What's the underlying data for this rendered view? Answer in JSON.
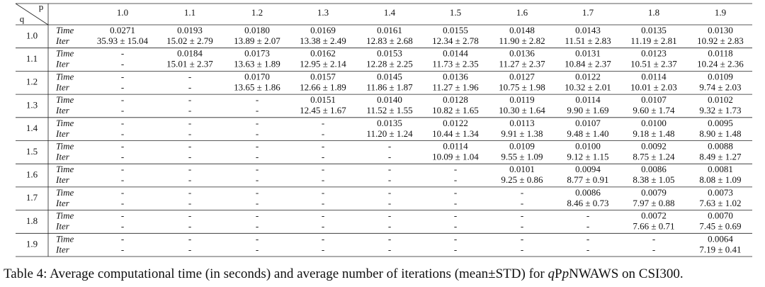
{
  "table": {
    "corner_p": "p",
    "corner_q": "q",
    "columns": [
      "1.0",
      "1.1",
      "1.2",
      "1.3",
      "1.4",
      "1.5",
      "1.6",
      "1.7",
      "1.8",
      "1.9"
    ],
    "rows": [
      {
        "q": "1.0",
        "time_label": "Time",
        "iter_label": "Iter",
        "time": [
          "0.0271",
          "0.0193",
          "0.0180",
          "0.0169",
          "0.0161",
          "0.0155",
          "0.0148",
          "0.0143",
          "0.0135",
          "0.0130"
        ],
        "iter": [
          "35.93 ± 15.04",
          "15.02 ± 2.79",
          "13.89 ± 2.07",
          "13.38 ± 2.49",
          "12.83 ± 2.68",
          "12.34 ± 2.78",
          "11.90 ± 2.82",
          "11.51 ± 2.83",
          "11.19 ± 2.81",
          "10.92 ± 2.83"
        ]
      },
      {
        "q": "1.1",
        "time_label": "Time",
        "iter_label": "Iter",
        "time": [
          "-",
          "0.0184",
          "0.0173",
          "0.0162",
          "0.0153",
          "0.0144",
          "0.0136",
          "0.0131",
          "0.0123",
          "0.0118"
        ],
        "iter": [
          "-",
          "15.01 ± 2.37",
          "13.63 ± 1.89",
          "12.95 ± 2.14",
          "12.28 ± 2.25",
          "11.73 ± 2.35",
          "11.27 ± 2.37",
          "10.84 ± 2.37",
          "10.51 ± 2.37",
          "10.24 ± 2.36"
        ]
      },
      {
        "q": "1.2",
        "time_label": "Time",
        "iter_label": "Iter",
        "time": [
          "-",
          "-",
          "0.0170",
          "0.0157",
          "0.0145",
          "0.0136",
          "0.0127",
          "0.0122",
          "0.0114",
          "0.0109"
        ],
        "iter": [
          "-",
          "-",
          "13.65 ± 1.86",
          "12.66 ± 1.89",
          "11.86 ± 1.87",
          "11.27 ± 1.96",
          "10.75 ± 1.98",
          "10.32 ± 2.01",
          "10.01 ± 2.03",
          "9.74 ± 2.03"
        ]
      },
      {
        "q": "1.3",
        "time_label": "Time",
        "iter_label": "Iter",
        "time": [
          "-",
          "-",
          "-",
          "0.0151",
          "0.0140",
          "0.0128",
          "0.0119",
          "0.0114",
          "0.0107",
          "0.0102"
        ],
        "iter": [
          "-",
          "-",
          "-",
          "12.45 ± 1.67",
          "11.52 ± 1.55",
          "10.82 ± 1.65",
          "10.30 ± 1.64",
          "9.90 ± 1.69",
          "9.60 ± 1.74",
          "9.32 ± 1.73"
        ]
      },
      {
        "q": "1.4",
        "time_label": "Time",
        "iter_label": "Iter",
        "time": [
          "-",
          "-",
          "-",
          "-",
          "0.0135",
          "0.0122",
          "0.0113",
          "0.0107",
          "0.0100",
          "0.0095"
        ],
        "iter": [
          "-",
          "-",
          "-",
          "-",
          "11.20 ± 1.24",
          "10.44 ± 1.34",
          "9.91 ± 1.38",
          "9.48 ± 1.40",
          "9.18 ± 1.48",
          "8.90 ± 1.48"
        ]
      },
      {
        "q": "1.5",
        "time_label": "Time",
        "iter_label": "Iter",
        "time": [
          "-",
          "-",
          "-",
          "-",
          "-",
          "0.0114",
          "0.0109",
          "0.0100",
          "0.0092",
          "0.0088"
        ],
        "iter": [
          "-",
          "-",
          "-",
          "-",
          "-",
          "10.09 ± 1.04",
          "9.55 ± 1.09",
          "9.12 ± 1.15",
          "8.75 ± 1.24",
          "8.49 ± 1.27"
        ]
      },
      {
        "q": "1.6",
        "time_label": "Time",
        "iter_label": "Iter",
        "time": [
          "-",
          "-",
          "-",
          "-",
          "-",
          "-",
          "0.0101",
          "0.0094",
          "0.0086",
          "0.0081"
        ],
        "iter": [
          "-",
          "-",
          "-",
          "-",
          "-",
          "-",
          "9.25 ± 0.86",
          "8.77 ± 0.91",
          "8.38 ± 1.05",
          "8.08 ± 1.09"
        ]
      },
      {
        "q": "1.7",
        "time_label": "Time",
        "iter_label": "Iter",
        "time": [
          "-",
          "-",
          "-",
          "-",
          "-",
          "-",
          "-",
          "0.0086",
          "0.0079",
          "0.0073"
        ],
        "iter": [
          "-",
          "-",
          "-",
          "-",
          "-",
          "-",
          "-",
          "8.46 ± 0.73",
          "7.97 ± 0.88",
          "7.63 ± 1.02"
        ]
      },
      {
        "q": "1.8",
        "time_label": "Time",
        "iter_label": "Iter",
        "time": [
          "-",
          "-",
          "-",
          "-",
          "-",
          "-",
          "-",
          "-",
          "0.0072",
          "0.0070"
        ],
        "iter": [
          "-",
          "-",
          "-",
          "-",
          "-",
          "-",
          "-",
          "-",
          "7.66 ± 0.71",
          "7.45 ± 0.69"
        ]
      },
      {
        "q": "1.9",
        "time_label": "Time",
        "iter_label": "Iter",
        "time": [
          "-",
          "-",
          "-",
          "-",
          "-",
          "-",
          "-",
          "-",
          "-",
          "0.0064"
        ],
        "iter": [
          "-",
          "-",
          "-",
          "-",
          "-",
          "-",
          "-",
          "-",
          "-",
          "7.19 ± 0.41"
        ]
      }
    ]
  },
  "caption": [
    "Table 4: Average computational time (in seconds) and average number of iterations (mean±STD) for ",
    "q",
    "P",
    "p",
    "NWAWS on CSI300."
  ]
}
